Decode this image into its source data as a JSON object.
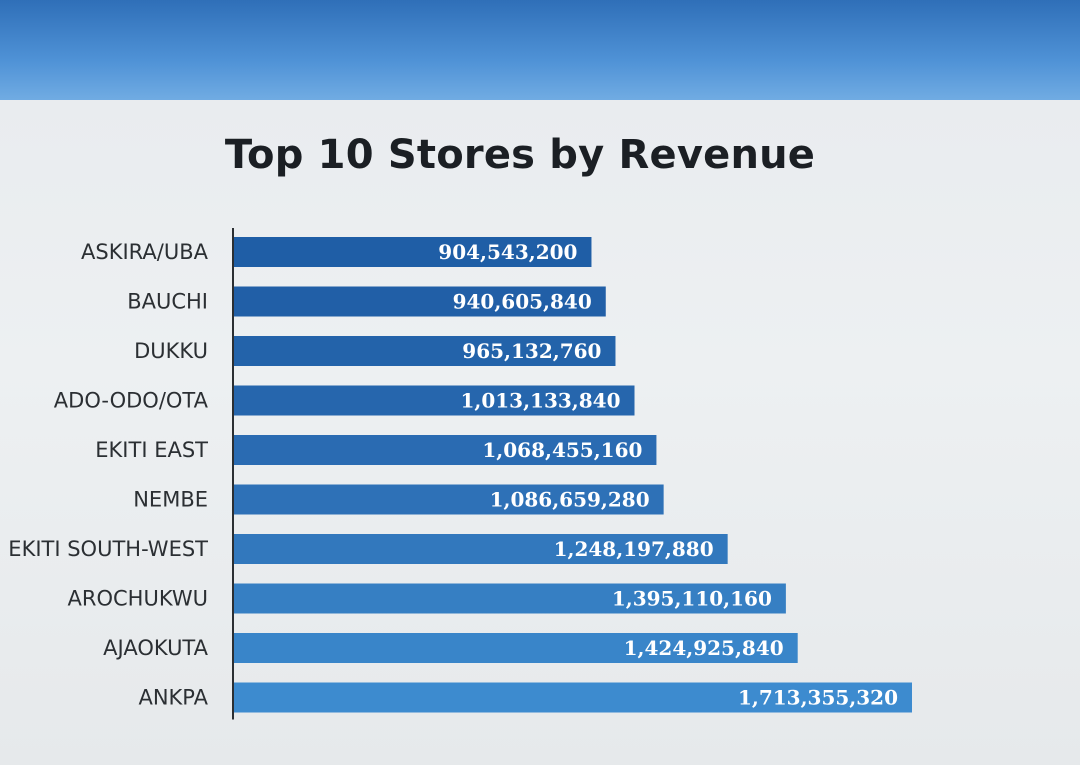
{
  "chart_data": {
    "type": "bar",
    "orientation": "horizontal",
    "title": "Top 10 Stores by Revenue",
    "categories": [
      "ASKIRA/UBA",
      "BAUCHI",
      "DUKKU",
      "ADO-ODO/OTA",
      "EKITI EAST",
      "NEMBE",
      "EKITI SOUTH-WEST",
      "AROCHUKWU",
      "AJAOKUTA",
      "ANKPA"
    ],
    "values": [
      904543200,
      940605840,
      965132760,
      1013133840,
      1068455160,
      1086659280,
      1248197880,
      1395110160,
      1424925840,
      1713355320
    ],
    "value_labels": [
      "904,543,200",
      "940,605,840",
      "965,132,760",
      "1,013,133,840",
      "1,068,455,160",
      "1,086,659,280",
      "1,248,197,880",
      "1,395,110,160",
      "1,424,925,840",
      "1,713,355,320"
    ],
    "xlim": [
      0,
      1713355320
    ],
    "grid": false,
    "legend": "none",
    "bar_colors": [
      "#1f5ea6",
      "#215fa7",
      "#2363aa",
      "#2666ad",
      "#2a6bb2",
      "#2e71b7",
      "#3278bd",
      "#367fc3",
      "#3985c9",
      "#3d8bcf"
    ],
    "axis_color": "#2b2f33"
  }
}
